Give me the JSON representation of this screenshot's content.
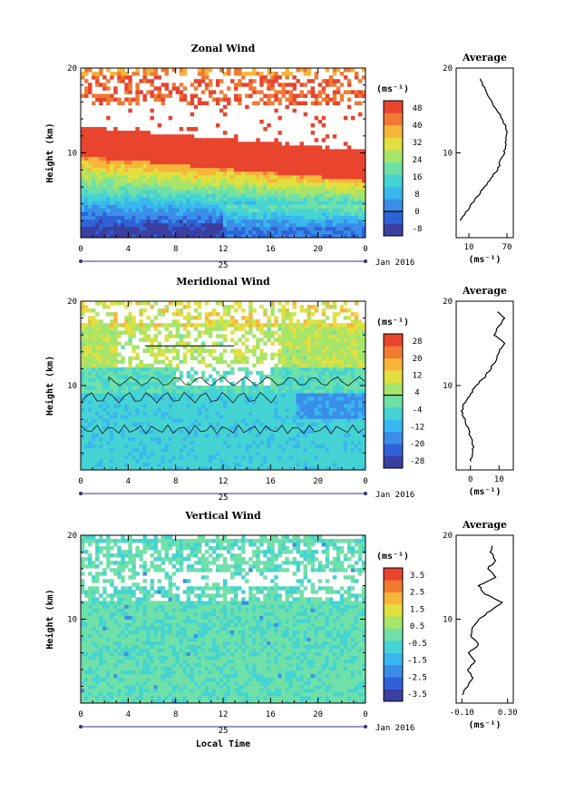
{
  "chart_data": [
    {
      "type": "heatmap",
      "title": "Zonal Wind",
      "ylabel": "Height (km)",
      "y_ticks": [
        "10",
        "20"
      ],
      "ylim": [
        0,
        20
      ],
      "x_ticks": [
        "0",
        "4",
        "8",
        "12",
        "16",
        "20",
        "0"
      ],
      "xlim": [
        0,
        24
      ],
      "day_label": "25",
      "date_label": "Jan 2016",
      "colorbar_unit": "(ms⁻¹)",
      "colorbar_ticks": [
        "48",
        "40",
        "32",
        "24",
        "16",
        "8",
        "0",
        "-8"
      ],
      "colorbar_colors": [
        "#3a3fa0",
        "#2f62d6",
        "#3a8ee8",
        "#39b7ef",
        "#45d3d3",
        "#6fe0a8",
        "#a6e56a",
        "#e2e040",
        "#f7b53a",
        "#f07a32",
        "#e8442e"
      ],
      "profile": {
        "title": "Average",
        "x_ticks": [
          "10",
          "70"
        ],
        "xlabel": "(ms⁻¹)",
        "xlim": [
          -10,
          80
        ],
        "heights": [
          2,
          3,
          4,
          5,
          6,
          7,
          8,
          9,
          10,
          11,
          12,
          13,
          14,
          15,
          16,
          17,
          18,
          19
        ],
        "values": [
          -5,
          5,
          15,
          25,
          35,
          45,
          55,
          60,
          65,
          68,
          70,
          68,
          63,
          55,
          45,
          38,
          32,
          28
        ]
      }
    },
    {
      "type": "heatmap",
      "title": "Meridional Wind",
      "ylabel": "Height (km)",
      "y_ticks": [
        "10",
        "20"
      ],
      "ylim": [
        0,
        20
      ],
      "x_ticks": [
        "0",
        "4",
        "8",
        "12",
        "16",
        "20",
        "0"
      ],
      "xlim": [
        0,
        24
      ],
      "day_label": "25",
      "date_label": "Jan 2016",
      "colorbar_unit": "(ms⁻¹)",
      "colorbar_ticks": [
        "28",
        "20",
        "12",
        "4",
        "-4",
        "-12",
        "-20",
        "-28"
      ],
      "colorbar_colors": [
        "#3a3fa0",
        "#2f62d6",
        "#3a8ee8",
        "#39b7ef",
        "#45d3d3",
        "#6fe0a8",
        "#a6e56a",
        "#e2e040",
        "#f7b53a",
        "#f07a32",
        "#e8442e"
      ],
      "profile": {
        "title": "Average",
        "x_ticks": [
          "0",
          "10"
        ],
        "xlabel": "(ms⁻¹)",
        "xlim": [
          -5,
          15
        ],
        "heights": [
          1,
          2,
          3,
          4,
          5,
          6,
          7,
          8,
          9,
          10,
          11,
          12,
          13,
          14,
          15,
          16,
          17,
          18,
          19
        ],
        "values": [
          0,
          1,
          1,
          0,
          -1,
          -2,
          -3,
          -2,
          0,
          2,
          5,
          7,
          9,
          10,
          12,
          8,
          10,
          12,
          9
        ]
      }
    },
    {
      "type": "heatmap",
      "title": "Vertical Wind",
      "ylabel": "Height (km)",
      "y_ticks": [
        "10",
        "20"
      ],
      "ylim": [
        0,
        20
      ],
      "x_ticks": [
        "0",
        "4",
        "8",
        "12",
        "16",
        "20",
        "0"
      ],
      "xlim": [
        0,
        24
      ],
      "day_label": "25",
      "date_label": "Jan 2016",
      "xlabel": "Local Time",
      "colorbar_unit": "(ms⁻¹)",
      "colorbar_ticks": [
        "3.5",
        "2.5",
        "1.5",
        "0.5",
        "-0.5",
        "-1.5",
        "-2.5",
        "-3.5"
      ],
      "colorbar_colors": [
        "#3a3fa0",
        "#2f62d6",
        "#3a8ee8",
        "#39b7ef",
        "#45d3d3",
        "#6fe0a8",
        "#a6e56a",
        "#e2e040",
        "#f7b53a",
        "#f07a32",
        "#e8442e"
      ],
      "profile": {
        "title": "Average",
        "x_ticks": [
          "-0.10",
          "0.30"
        ],
        "xlabel": "(ms⁻¹)",
        "xlim": [
          -0.15,
          0.35
        ],
        "heights": [
          1,
          2,
          3,
          4,
          5,
          6,
          7,
          8,
          9,
          10,
          11,
          12,
          13,
          14,
          15,
          16,
          17,
          18,
          19
        ],
        "values": [
          -0.1,
          -0.05,
          0.0,
          -0.05,
          0.02,
          -0.04,
          0.05,
          -0.02,
          0.0,
          0.05,
          0.15,
          0.25,
          0.1,
          0.05,
          0.2,
          0.12,
          0.2,
          0.15,
          0.18
        ]
      }
    }
  ]
}
